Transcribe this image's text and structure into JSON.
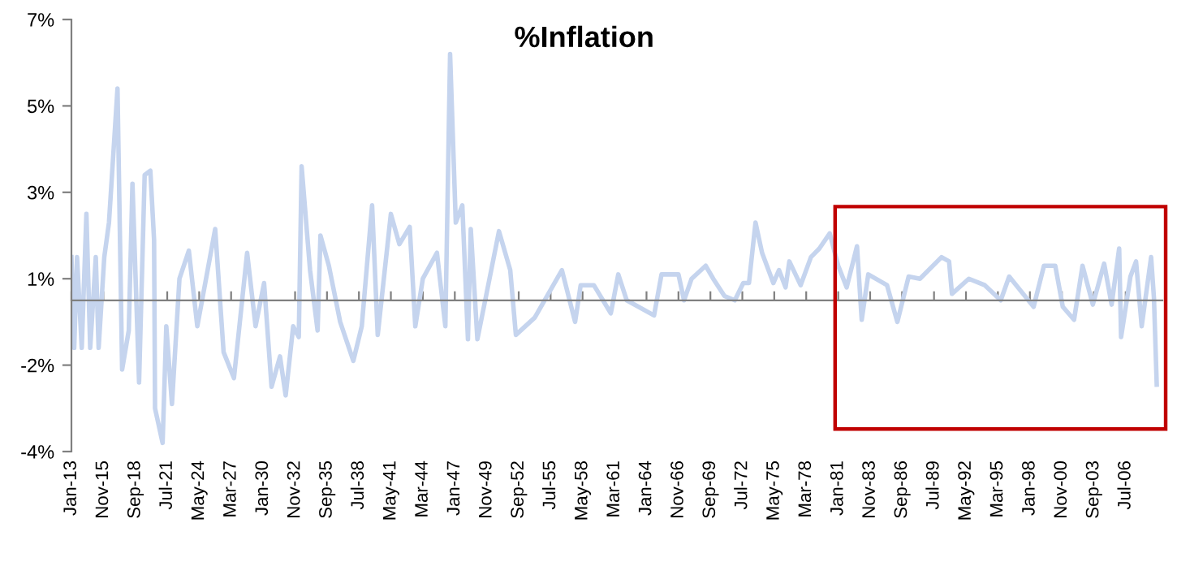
{
  "chart_data": {
    "type": "line",
    "title": "%Inflation",
    "x": [
      "1913-01",
      "1913-04",
      "1913-07",
      "1913-12",
      "1914-05",
      "1914-09",
      "1915-03",
      "1915-06",
      "1915-12",
      "1916-05",
      "1917-02",
      "1917-07",
      "1918-02",
      "1918-06",
      "1919-01",
      "1919-07",
      "1920-01",
      "1920-05",
      "1920-06",
      "1921-02",
      "1921-06",
      "1921-12",
      "1922-08",
      "1923-06",
      "1924-03",
      "1925-10",
      "1926-07",
      "1927-06",
      "1928-08",
      "1929-05",
      "1930-02",
      "1930-10",
      "1931-07",
      "1932-01",
      "1932-09",
      "1933-03",
      "1933-06",
      "1934-03",
      "1934-11",
      "1935-02",
      "1935-11",
      "1936-11",
      "1938-01",
      "1938-10",
      "1939-09",
      "1940-03",
      "1941-05",
      "1942-02",
      "1943-01",
      "1943-07",
      "1944-03",
      "1945-06",
      "1946-03",
      "1946-08",
      "1947-02",
      "1947-09",
      "1948-03",
      "1948-06",
      "1949-01",
      "1950-01",
      "1950-12",
      "1951-12",
      "1952-06",
      "1954-02",
      "1956-07",
      "1957-09",
      "1958-03",
      "1959-05",
      "1960-11",
      "1961-07",
      "1962-04",
      "1964-09",
      "1965-05",
      "1966-11",
      "1967-05",
      "1968-01",
      "1969-04",
      "1969-12",
      "1970-12",
      "1971-11",
      "1972-08",
      "1973-02",
      "1973-09",
      "1974-04",
      "1975-04",
      "1975-10",
      "1976-05",
      "1976-09",
      "1977-09",
      "1978-08",
      "1979-05",
      "1980-04",
      "1981-01",
      "1981-10",
      "1982-09",
      "1983-02",
      "1983-09",
      "1985-05",
      "1986-04",
      "1987-04",
      "1988-04",
      "1990-03",
      "1990-11",
      "1991-02",
      "1992-08",
      "1994-01",
      "1995-06",
      "1996-03",
      "1998-05",
      "1999-04",
      "2000-04",
      "2000-12",
      "2001-12",
      "2002-09",
      "2003-08",
      "2004-08",
      "2005-04",
      "2005-12",
      "2006-02",
      "2006-12",
      "2007-06",
      "2007-12",
      "2008-10",
      "2009-01",
      "2009-04"
    ],
    "series": [
      {
        "color": "#c5d4ee",
        "values": [
          1.0,
          -1.1,
          1.0,
          -1.1,
          2.0,
          -1.1,
          1.0,
          -1.1,
          1.0,
          1.8,
          4.9,
          -1.6,
          -0.7,
          2.7,
          -1.9,
          2.9,
          3.0,
          1.4,
          -2.5,
          -3.3,
          -0.6,
          -2.4,
          0.5,
          1.15,
          -0.6,
          1.65,
          -1.2,
          -1.8,
          1.1,
          -0.6,
          0.4,
          -2.0,
          -1.3,
          -2.2,
          -0.6,
          -0.85,
          3.1,
          0.7,
          -0.7,
          1.5,
          0.8,
          -0.5,
          -1.4,
          -0.6,
          2.2,
          -0.8,
          2.0,
          1.3,
          1.7,
          -0.6,
          0.5,
          1.1,
          -0.6,
          5.7,
          1.8,
          2.2,
          -0.9,
          1.65,
          -0.9,
          0.4,
          1.6,
          0.7,
          -0.8,
          -0.4,
          0.7,
          -0.5,
          0.35,
          0.35,
          -0.3,
          0.6,
          0,
          -0.35,
          0.6,
          0.6,
          0,
          0.5,
          0.8,
          0.5,
          0.1,
          0,
          0.4,
          0.4,
          1.8,
          1.1,
          0.4,
          0.7,
          0.3,
          0.9,
          0.35,
          1.0,
          1.2,
          1.55,
          0.8,
          0.3,
          1.25,
          -0.45,
          0.6,
          0.35,
          -0.5,
          0.55,
          0.5,
          1.0,
          0.9,
          0.15,
          0.5,
          0.35,
          0,
          0.55,
          -0.15,
          0.8,
          0.8,
          -0.15,
          -0.45,
          0.8,
          -0.1,
          0.85,
          -0.1,
          1.2,
          -0.85,
          0.55,
          0.9,
          -0.6,
          1.0,
          0.05,
          -1.95
        ]
      }
    ],
    "xlim": [
      "1913-01",
      "2009-10"
    ],
    "xticks": [
      {
        "value": "1913-01",
        "label": "Jan-13"
      },
      {
        "value": "1915-11",
        "label": "Nov-15"
      },
      {
        "value": "1918-09",
        "label": "Sep-18"
      },
      {
        "value": "1921-07",
        "label": "Jul-21"
      },
      {
        "value": "1924-05",
        "label": "May-24"
      },
      {
        "value": "1927-03",
        "label": "Mar-27"
      },
      {
        "value": "1930-01",
        "label": "Jan-30"
      },
      {
        "value": "1932-11",
        "label": "Nov-32"
      },
      {
        "value": "1935-09",
        "label": "Sep-35"
      },
      {
        "value": "1938-07",
        "label": "Jul-38"
      },
      {
        "value": "1941-05",
        "label": "May-41"
      },
      {
        "value": "1944-03",
        "label": "Mar-44"
      },
      {
        "value": "1947-01",
        "label": "Jan-47"
      },
      {
        "value": "1949-11",
        "label": "Nov-49"
      },
      {
        "value": "1952-09",
        "label": "Sep-52"
      },
      {
        "value": "1955-07",
        "label": "Jul-55"
      },
      {
        "value": "1958-05",
        "label": "May-58"
      },
      {
        "value": "1961-03",
        "label": "Mar-61"
      },
      {
        "value": "1964-01",
        "label": "Jan-64"
      },
      {
        "value": "1966-11",
        "label": "Nov-66"
      },
      {
        "value": "1969-09",
        "label": "Sep-69"
      },
      {
        "value": "1972-07",
        "label": "Jul-72"
      },
      {
        "value": "1975-05",
        "label": "May-75"
      },
      {
        "value": "1978-03",
        "label": "Mar-78"
      },
      {
        "value": "1981-01",
        "label": "Jan-81"
      },
      {
        "value": "1983-11",
        "label": "Nov-83"
      },
      {
        "value": "1986-09",
        "label": "Sep-86"
      },
      {
        "value": "1989-07",
        "label": "Jul-89"
      },
      {
        "value": "1992-05",
        "label": "May-92"
      },
      {
        "value": "1995-03",
        "label": "Mar-95"
      },
      {
        "value": "1998-01",
        "label": "Jan-98"
      },
      {
        "value": "2000-11",
        "label": "Nov-00"
      },
      {
        "value": "2003-09",
        "label": "Sep-03"
      },
      {
        "value": "2006-07",
        "label": "Jul-06"
      }
    ],
    "ylim": [
      -3.5,
      6.5
    ],
    "yticks": [
      {
        "value": -3.5,
        "label": "-4%"
      },
      {
        "value": -1.5,
        "label": "-2%"
      },
      {
        "value": 0.5,
        "label": "1%"
      },
      {
        "value": 2.5,
        "label": "3%"
      },
      {
        "value": 4.5,
        "label": "5%"
      },
      {
        "value": 6.5,
        "label": "7%"
      }
    ],
    "line_style": "solid",
    "marker": "none"
  }
}
